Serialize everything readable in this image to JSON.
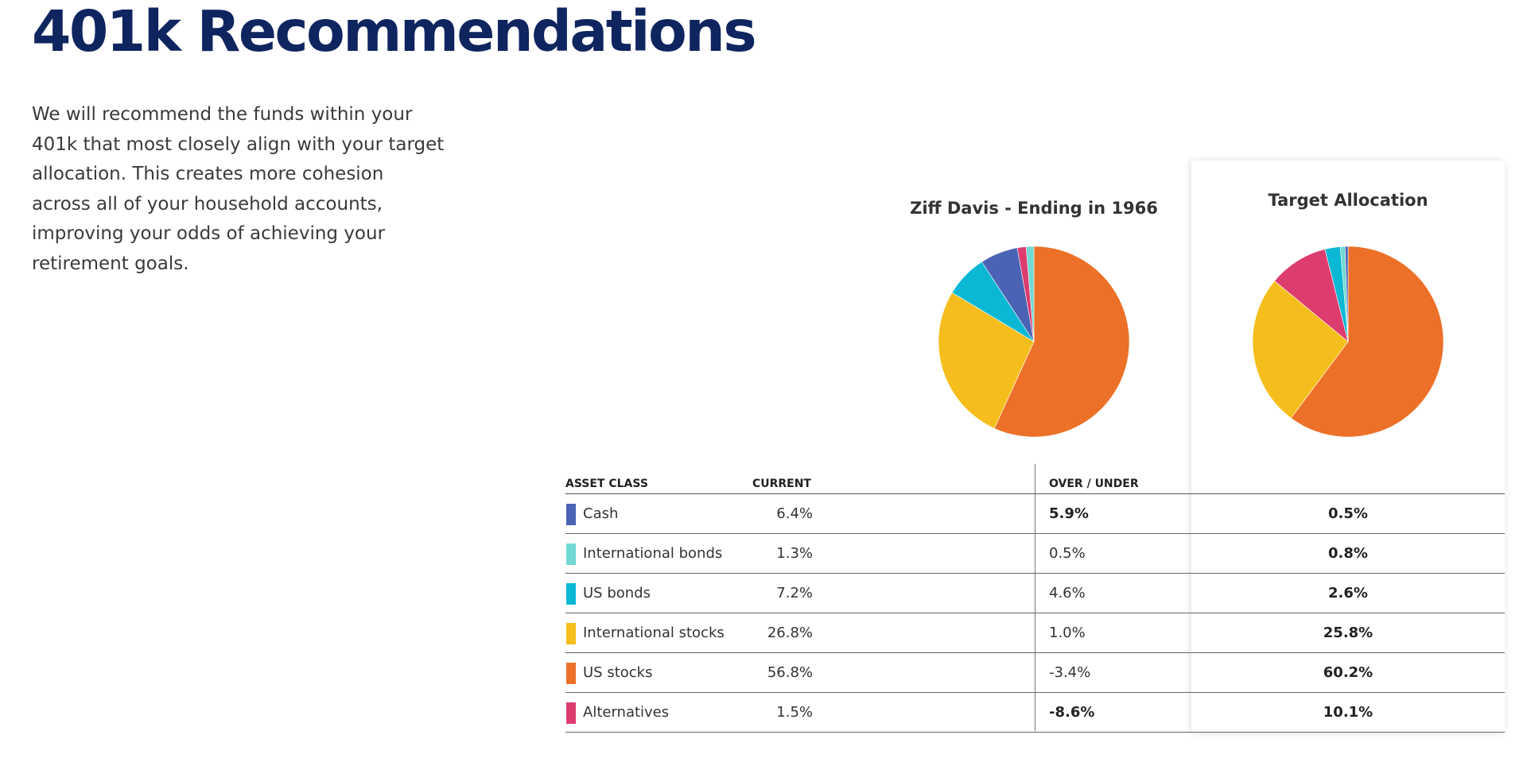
{
  "page": {
    "title": "401k Recommendations",
    "intro": "We will recommend the funds within your 401k that most closely align with your target allocation. This creates more cohesion across all of your household accounts, improving your odds of achieving your retirement goals."
  },
  "table": {
    "headers": {
      "asset_class": "ASSET CLASS",
      "current": "CURRENT",
      "over_under": "OVER / UNDER"
    },
    "rows": [
      {
        "name": "Cash",
        "color": "#4a63b4",
        "current": "6.4%",
        "over_under": "5.9%",
        "over_bold": true,
        "target": "0.5%"
      },
      {
        "name": "International bonds",
        "color": "#72d8d2",
        "current": "1.3%",
        "over_under": "0.5%",
        "over_bold": false,
        "target": "0.8%"
      },
      {
        "name": "US bonds",
        "color": "#0ab8d4",
        "current": "7.2%",
        "over_under": "4.6%",
        "over_bold": false,
        "target": "2.6%"
      },
      {
        "name": "International stocks",
        "color": "#f5be1c",
        "current": "26.8%",
        "over_under": "1.0%",
        "over_bold": false,
        "target": "25.8%"
      },
      {
        "name": "US stocks",
        "color": "#ec7027",
        "current": "56.8%",
        "over_under": "-3.4%",
        "over_bold": false,
        "target": "60.2%"
      },
      {
        "name": "Alternatives",
        "color": "#dc3c6e",
        "current": "1.5%",
        "over_under": "-8.6%",
        "over_bold": true,
        "target": "10.1%"
      }
    ]
  },
  "chart_data": [
    {
      "type": "pie",
      "title": "Ziff Davis - Ending in 1966",
      "categories": [
        "US stocks",
        "International stocks",
        "US bonds",
        "Cash",
        "Alternatives",
        "International bonds"
      ],
      "values": [
        56.8,
        26.8,
        7.2,
        6.4,
        1.5,
        1.3
      ],
      "colors": [
        "#ec7027",
        "#f5be1c",
        "#0ab8d4",
        "#4a63b4",
        "#dc3c6e",
        "#72d8d2"
      ]
    },
    {
      "type": "pie",
      "title": "Target Allocation",
      "categories": [
        "US stocks",
        "International stocks",
        "Alternatives",
        "US bonds",
        "International bonds",
        "Cash"
      ],
      "values": [
        60.2,
        25.8,
        10.1,
        2.6,
        0.8,
        0.5
      ],
      "colors": [
        "#ec7027",
        "#f5be1c",
        "#dc3c6e",
        "#0ab8d4",
        "#72d8d2",
        "#4a63b4"
      ]
    }
  ]
}
